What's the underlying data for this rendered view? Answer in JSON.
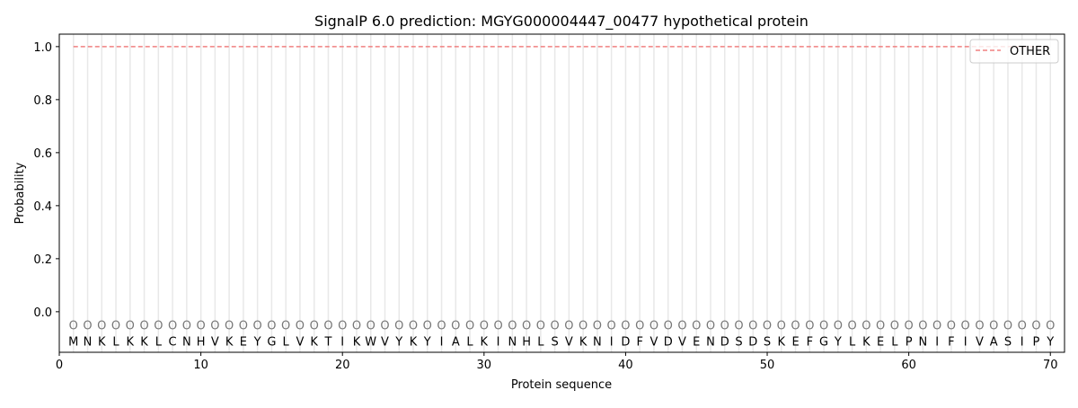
{
  "chart_data": {
    "type": "line",
    "title": "SignalP 6.0 prediction: MGYG000004447_00477 hypothetical protein",
    "xlabel": "Protein sequence",
    "ylabel": "Probability",
    "xlim": [
      0,
      71
    ],
    "ylim": [
      -0.153,
      1.047
    ],
    "xticks": [
      0,
      10,
      20,
      30,
      40,
      50,
      60,
      70
    ],
    "yticks": [
      0.0,
      0.2,
      0.4,
      0.6,
      0.8,
      1.0
    ],
    "ytick_labels": [
      "0.0",
      "0.2",
      "0.4",
      "0.6",
      "0.8",
      "1.0"
    ],
    "grid": "vertical lines at each residue",
    "legend_position": "top-right",
    "sequence": [
      "M",
      "N",
      "K",
      "L",
      "K",
      "K",
      "L",
      "C",
      "N",
      "H",
      "V",
      "K",
      "E",
      "Y",
      "G",
      "L",
      "V",
      "K",
      "T",
      "I",
      "K",
      "W",
      "V",
      "Y",
      "K",
      "Y",
      "I",
      "A",
      "L",
      "K",
      "I",
      "N",
      "H",
      "L",
      "S",
      "V",
      "K",
      "N",
      "I",
      "D",
      "F",
      "V",
      "D",
      "V",
      "E",
      "N",
      "D",
      "S",
      "D",
      "S",
      "K",
      "E",
      "F",
      "G",
      "Y",
      "L",
      "K",
      "E",
      "L",
      "P",
      "N",
      "I",
      "F",
      "I",
      "V",
      "A",
      "S",
      "I",
      "P",
      "Y"
    ],
    "region_label": "O",
    "series": [
      {
        "name": "OTHER",
        "color": "#f08080",
        "style": "dashed",
        "x_range": [
          1,
          70
        ],
        "value": 1.0
      }
    ]
  }
}
